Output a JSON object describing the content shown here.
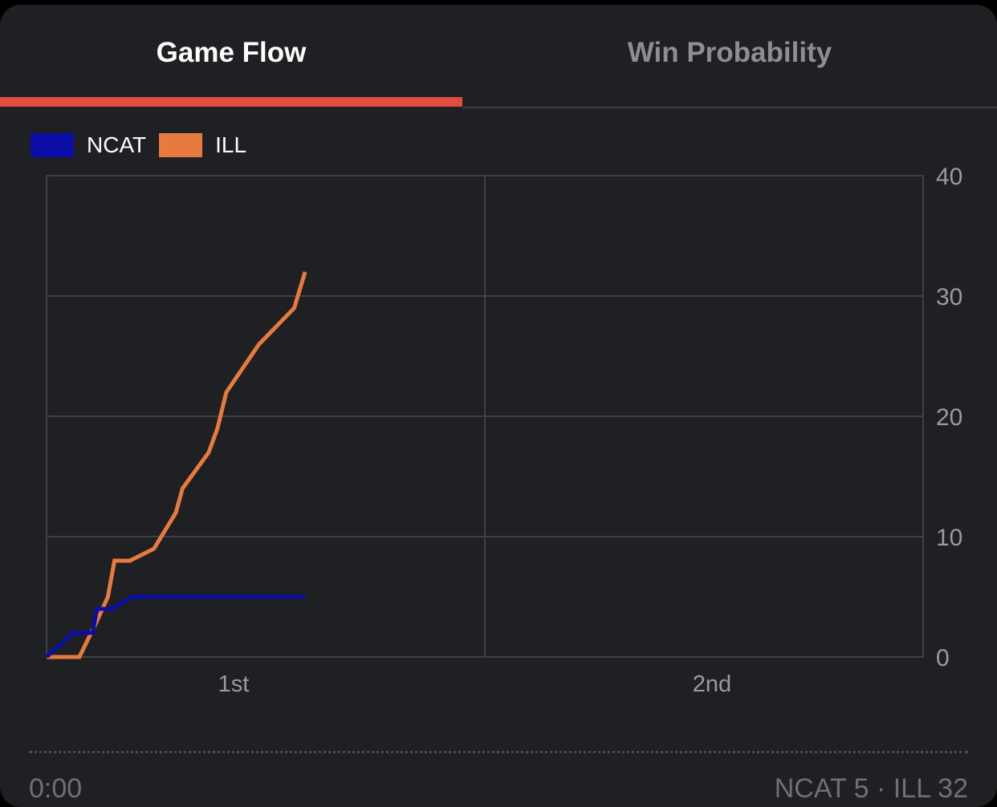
{
  "tabs": [
    {
      "label": "Game Flow",
      "active": true
    },
    {
      "label": "Win Probability",
      "active": false
    }
  ],
  "colors": {
    "accent": "#e04d43",
    "ncat": "#0b0ea6",
    "ill": "#e77b3f"
  },
  "chart_data": {
    "type": "line",
    "title": "",
    "xlabel": "",
    "ylabel": "",
    "x_categories": [
      "1st",
      "2nd"
    ],
    "xlim": [
      0,
      40
    ],
    "ylim": [
      0,
      40
    ],
    "y_ticks": [
      0,
      10,
      20,
      30,
      40
    ],
    "y_axis_side": "right",
    "grid": true,
    "legend_position": "top-left",
    "series": [
      {
        "name": "NCAT",
        "color": "#0b0ea6",
        "points": [
          [
            0.0,
            0
          ],
          [
            1.2,
            2
          ],
          [
            2.1,
            2
          ],
          [
            2.3,
            4
          ],
          [
            3.0,
            4
          ],
          [
            3.9,
            5
          ],
          [
            11.8,
            5
          ]
        ]
      },
      {
        "name": "ILL",
        "color": "#e77b3f",
        "points": [
          [
            0.0,
            0
          ],
          [
            1.5,
            0
          ],
          [
            2.3,
            3
          ],
          [
            2.8,
            5
          ],
          [
            3.1,
            8
          ],
          [
            3.8,
            8
          ],
          [
            4.9,
            9
          ],
          [
            5.9,
            12
          ],
          [
            6.2,
            14
          ],
          [
            7.4,
            17
          ],
          [
            7.8,
            19
          ],
          [
            8.2,
            22
          ],
          [
            9.7,
            26
          ],
          [
            11.3,
            29
          ],
          [
            11.8,
            32
          ]
        ]
      }
    ]
  },
  "footer": {
    "left": "0:00",
    "right": "NCAT 5 · ILL 32"
  }
}
